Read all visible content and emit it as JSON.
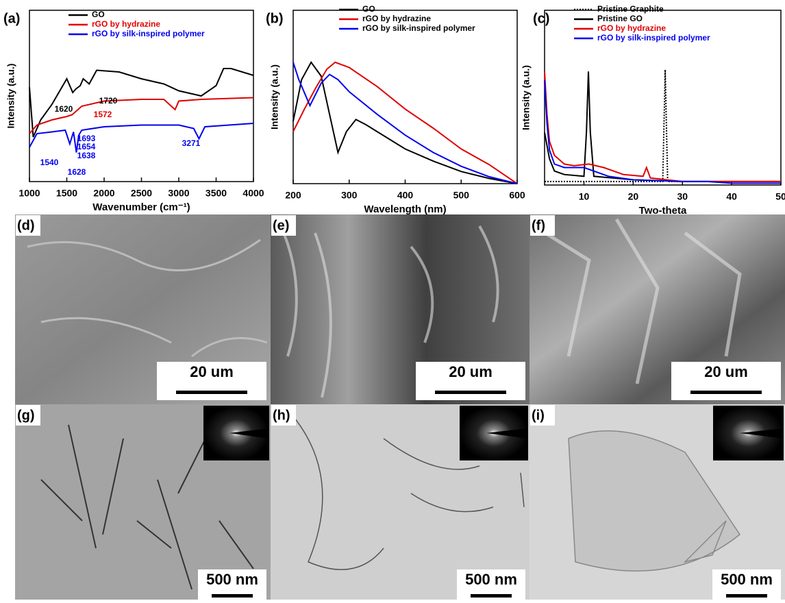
{
  "chart_data": [
    {
      "type": "line",
      "label": "(a)",
      "x_label": "Wavenumber (cm⁻¹)",
      "y_label": "Intensity (a.u.)",
      "xlim": [
        1000,
        4000
      ],
      "xticks": [
        1000,
        1500,
        2000,
        2500,
        3000,
        3500,
        4000
      ],
      "ylim": [
        0,
        1
      ],
      "legend_text_colored": true,
      "series": [
        {
          "name": "GO",
          "color": "#000000",
          "x": [
            1000,
            1050,
            1150,
            1300,
            1500,
            1580,
            1620,
            1680,
            1720,
            1800,
            1900,
            2200,
            2500,
            2800,
            3000,
            3300,
            3500,
            3600,
            3700,
            4000
          ],
          "values": [
            0.55,
            0.26,
            0.36,
            0.45,
            0.6,
            0.52,
            0.54,
            0.56,
            0.6,
            0.57,
            0.65,
            0.64,
            0.6,
            0.57,
            0.53,
            0.5,
            0.56,
            0.66,
            0.66,
            0.62
          ]
        },
        {
          "name": "rGO by hydrazine",
          "color": "#e00000",
          "x": [
            1000,
            1100,
            1300,
            1500,
            1572,
            1700,
            2000,
            2500,
            2800,
            2900,
            2950,
            3000,
            3300,
            4000
          ],
          "values": [
            0.28,
            0.33,
            0.36,
            0.38,
            0.39,
            0.44,
            0.47,
            0.48,
            0.48,
            0.44,
            0.42,
            0.47,
            0.48,
            0.49
          ]
        },
        {
          "name": "rGO by silk-inspired polymer",
          "color": "#0000ee",
          "x": [
            1000,
            1100,
            1300,
            1480,
            1540,
            1590,
            1628,
            1660,
            1700,
            2000,
            2500,
            3000,
            3200,
            3271,
            3350,
            4000
          ],
          "values": [
            0.2,
            0.28,
            0.29,
            0.3,
            0.22,
            0.29,
            0.17,
            0.27,
            0.3,
            0.32,
            0.33,
            0.33,
            0.31,
            0.25,
            0.32,
            0.34
          ]
        }
      ],
      "annotations": [
        {
          "text": "1620",
          "color": "#000000"
        },
        {
          "text": "1720",
          "color": "#000000"
        },
        {
          "text": "1572",
          "color": "#e00000"
        },
        {
          "text": "1693",
          "color": "#0000ee"
        },
        {
          "text": "1654",
          "color": "#0000ee"
        },
        {
          "text": "1638",
          "color": "#0000ee"
        },
        {
          "text": "1540",
          "color": "#0000ee"
        },
        {
          "text": "1628",
          "color": "#0000ee"
        },
        {
          "text": "3271",
          "color": "#0000ee"
        }
      ]
    },
    {
      "type": "line",
      "label": "(b)",
      "x_label": "Wavelength (nm)",
      "y_label": "Intensity (a.u.)",
      "xlim": [
        200,
        600
      ],
      "xticks": [
        200,
        300,
        400,
        500,
        600
      ],
      "ylim": [
        0,
        1
      ],
      "legend_text_colored": false,
      "series": [
        {
          "name": "GO",
          "color": "#000000",
          "x": [
            200,
            215,
            232,
            250,
            265,
            280,
            295,
            312,
            330,
            350,
            400,
            450,
            500,
            550,
            600
          ],
          "values": [
            0.36,
            0.6,
            0.7,
            0.62,
            0.4,
            0.18,
            0.3,
            0.37,
            0.34,
            0.3,
            0.2,
            0.13,
            0.07,
            0.03,
            0
          ]
        },
        {
          "name": "rGO by hydrazine",
          "color": "#e00000",
          "x": [
            200,
            220,
            240,
            260,
            275,
            300,
            350,
            400,
            450,
            500,
            550,
            600
          ],
          "values": [
            0.3,
            0.43,
            0.55,
            0.66,
            0.7,
            0.67,
            0.56,
            0.43,
            0.32,
            0.2,
            0.11,
            0
          ]
        },
        {
          "name": "rGO by silk-inspired polymer",
          "color": "#0000ee",
          "x": [
            200,
            210,
            230,
            250,
            265,
            280,
            300,
            350,
            400,
            450,
            500,
            550,
            600
          ],
          "values": [
            0.7,
            0.6,
            0.45,
            0.58,
            0.63,
            0.6,
            0.53,
            0.4,
            0.28,
            0.18,
            0.1,
            0.04,
            0
          ]
        }
      ]
    },
    {
      "type": "line",
      "label": "(c)",
      "x_label": "Two-theta",
      "y_label": "Intensity (a.u.)",
      "xlim": [
        2,
        50
      ],
      "xticks": [
        10,
        20,
        30,
        40,
        50
      ],
      "ylim": [
        0,
        1
      ],
      "legend_text_colored": true,
      "series": [
        {
          "name": "Pristine Graphite",
          "color": "#000000",
          "dashed": true,
          "x": [
            2,
            10,
            20,
            26,
            26.5,
            27,
            35,
            50
          ],
          "values": [
            0.02,
            0.02,
            0.02,
            0.02,
            0.66,
            0.02,
            0.02,
            0.02
          ]
        },
        {
          "name": "Pristine GO",
          "color": "#000000",
          "x": [
            2,
            3,
            4,
            6,
            10,
            10.5,
            10.9,
            11.3,
            12,
            20,
            30,
            50
          ],
          "values": [
            0.3,
            0.15,
            0.08,
            0.06,
            0.05,
            0.3,
            0.65,
            0.3,
            0.05,
            0.03,
            0.02,
            0.02
          ]
        },
        {
          "name": "rGO by hydrazine",
          "color": "#e00000",
          "x": [
            2,
            2.5,
            3,
            4,
            6,
            8,
            11,
            14,
            18,
            22,
            22.7,
            23.5,
            30,
            40,
            50
          ],
          "values": [
            0.65,
            0.4,
            0.25,
            0.17,
            0.12,
            0.11,
            0.12,
            0.1,
            0.06,
            0.05,
            0.1,
            0.04,
            0.02,
            0.02,
            0.02
          ]
        },
        {
          "name": "rGO by silk-inspired polymer",
          "color": "#0000ee",
          "x": [
            2,
            2.5,
            3,
            4,
            6,
            10,
            15,
            20,
            30,
            35,
            40,
            50
          ],
          "values": [
            0.6,
            0.35,
            0.2,
            0.12,
            0.1,
            0.1,
            0.05,
            0.03,
            0.02,
            0.02,
            0.01,
            0.01
          ]
        }
      ]
    }
  ],
  "panels": [
    {
      "label": "(d)",
      "scale_bar": "20 um"
    },
    {
      "label": "(e)",
      "scale_bar": "20 um"
    },
    {
      "label": "(f)",
      "scale_bar": "20 um"
    },
    {
      "label": "(g)",
      "scale_bar": "500 nm"
    },
    {
      "label": "(h)",
      "scale_bar": "500 nm"
    },
    {
      "label": "(i)",
      "scale_bar": "500 nm"
    }
  ]
}
